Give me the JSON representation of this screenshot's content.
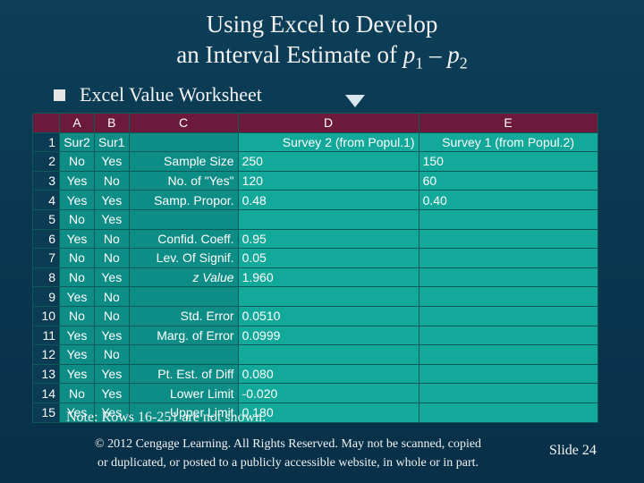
{
  "title": {
    "line1": "Using Excel to Develop",
    "line2_prefix": "an Interval Estimate of ",
    "p": "p",
    "sub1": "1",
    "minus": " – ",
    "sub2": "2"
  },
  "bullet": "Excel Value Worksheet",
  "sheet": {
    "columns": [
      "A",
      "B",
      "C",
      "D",
      "E"
    ],
    "rows": [
      {
        "n": "1",
        "A": "Sur2",
        "B": "Sur1",
        "C": "",
        "D": "Survey 2 (from Popul.1)",
        "E": "Survey 1 (from Popul.2)"
      },
      {
        "n": "2",
        "A": "No",
        "B": "Yes",
        "C": "Sample Size",
        "D": "250",
        "E": "150"
      },
      {
        "n": "3",
        "A": "Yes",
        "B": "No",
        "C": "No. of \"Yes\"",
        "D": "120",
        "E": "60"
      },
      {
        "n": "4",
        "A": "Yes",
        "B": "Yes",
        "C": "Samp. Propor.",
        "D": "0.48",
        "E": "0.40"
      },
      {
        "n": "5",
        "A": "No",
        "B": "Yes",
        "C": "",
        "D": "",
        "E": ""
      },
      {
        "n": "6",
        "A": "Yes",
        "B": "No",
        "C": "Confid. Coeff.",
        "D": "0.95",
        "E": ""
      },
      {
        "n": "7",
        "A": "No",
        "B": "No",
        "C": "Lev. Of Signif.",
        "D": "0.05",
        "E": ""
      },
      {
        "n": "8",
        "A": "No",
        "B": "Yes",
        "C": "z Value",
        "D": "1.960",
        "E": ""
      },
      {
        "n": "9",
        "A": "Yes",
        "B": "No",
        "C": "",
        "D": "",
        "E": ""
      },
      {
        "n": "10",
        "A": "No",
        "B": "No",
        "C": "Std. Error",
        "D": "0.0510",
        "E": ""
      },
      {
        "n": "11",
        "A": "Yes",
        "B": "Yes",
        "C": "Marg. of Error",
        "D": "0.0999",
        "E": ""
      },
      {
        "n": "12",
        "A": "Yes",
        "B": "No",
        "C": "",
        "D": "",
        "E": ""
      },
      {
        "n": "13",
        "A": "Yes",
        "B": "Yes",
        "C": "Pt. Est. of Diff",
        "D": "0.080",
        "E": ""
      },
      {
        "n": "14",
        "A": "No",
        "B": "Yes",
        "C": "Lower Limit",
        "D": "-0.020",
        "E": ""
      },
      {
        "n": "15",
        "A": "Yes",
        "B": "Yes",
        "C": "Upper Limit",
        "D": "0.180",
        "E": ""
      }
    ]
  },
  "note": "Note: Rows 16-251 are not shown.",
  "footer": {
    "line1": "© 2012 Cengage Learning. All Rights Reserved. May not be scanned, copied",
    "line2": "or duplicated, or posted to a publicly accessible website, in whole or in part."
  },
  "slide": "Slide 24",
  "colors": {
    "background": "#0a3750",
    "header_fill": "#6b1a3c",
    "cell_fill": "#0e8d86",
    "value_fill": "#12a89a"
  }
}
